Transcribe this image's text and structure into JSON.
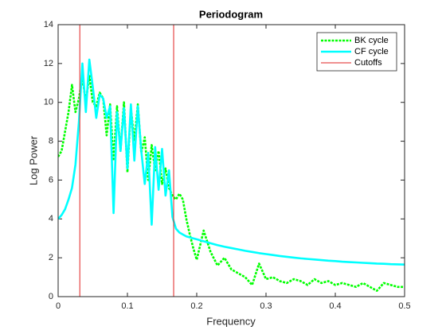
{
  "chart_data": {
    "type": "line",
    "title": "Periodogram",
    "xlabel": "Frequency",
    "ylabel": "Log Power",
    "xlim": [
      0,
      0.5
    ],
    "xticks": [
      0,
      0.1,
      0.2,
      0.3,
      0.4,
      0.5
    ],
    "ylim": [
      0,
      14
    ],
    "yticks": [
      0,
      2,
      4,
      6,
      8,
      10,
      12,
      14
    ],
    "legend": "northeast",
    "x": [
      0,
      0.005,
      0.01,
      0.015,
      0.02,
      0.025,
      0.03,
      0.035,
      0.04,
      0.045,
      0.05,
      0.055,
      0.06,
      0.065,
      0.07,
      0.075,
      0.08,
      0.085,
      0.09,
      0.095,
      0.1,
      0.105,
      0.11,
      0.115,
      0.12,
      0.125,
      0.13,
      0.135,
      0.14,
      0.145,
      0.15,
      0.155,
      0.16,
      0.165,
      0.17,
      0.175,
      0.18,
      0.185,
      0.19,
      0.195,
      0.2,
      0.21,
      0.22,
      0.23,
      0.24,
      0.25,
      0.26,
      0.27,
      0.28,
      0.29,
      0.3,
      0.31,
      0.32,
      0.33,
      0.34,
      0.35,
      0.36,
      0.37,
      0.38,
      0.39,
      0.4,
      0.41,
      0.42,
      0.43,
      0.44,
      0.45,
      0.46,
      0.47,
      0.48,
      0.49,
      0.5
    ],
    "series": [
      {
        "name": "BK cycle",
        "color": "#00ff00",
        "dash": "dotted",
        "values": [
          7.2,
          7.5,
          8.5,
          9.5,
          10.9,
          9.5,
          10.2,
          11.3,
          10.0,
          11.4,
          10.0,
          9.8,
          10.5,
          10.2,
          8.3,
          9.9,
          7.0,
          9.8,
          7.5,
          10.0,
          6.4,
          9.7,
          8.0,
          9.9,
          7.4,
          8.2,
          6.0,
          7.8,
          6.5,
          7.5,
          5.8,
          6.6,
          5.6,
          5.2,
          5.0,
          5.3,
          5.0,
          4.0,
          3.2,
          2.5,
          1.9,
          3.4,
          2.3,
          1.6,
          2.0,
          1.4,
          1.2,
          1.0,
          0.6,
          1.7,
          0.9,
          1.0,
          0.8,
          0.7,
          0.9,
          0.8,
          0.6,
          0.9,
          0.7,
          0.8,
          0.6,
          0.7,
          0.6,
          0.5,
          0.7,
          0.5,
          0.3,
          0.7,
          0.6,
          0.5,
          0.5
        ]
      },
      {
        "name": "CF cycle",
        "color": "#00ffff",
        "dash": "solid",
        "values": [
          4.0,
          4.2,
          4.5,
          5.0,
          5.6,
          6.8,
          9.0,
          12.0,
          9.5,
          12.2,
          10.8,
          9.2,
          10.4,
          10.2,
          9.2,
          9.8,
          4.3,
          9.5,
          7.5,
          9.7,
          6.6,
          9.9,
          7.0,
          9.8,
          7.5,
          5.8,
          7.4,
          3.7,
          7.7,
          5.5,
          7.6,
          5.2,
          6.5,
          4.1,
          3.5,
          3.3,
          3.2,
          3.1,
          3.05,
          3.0,
          2.95,
          2.85,
          2.75,
          2.65,
          2.57,
          2.5,
          2.43,
          2.36,
          2.3,
          2.24,
          2.19,
          2.14,
          2.09,
          2.05,
          2.01,
          1.97,
          1.94,
          1.91,
          1.88,
          1.85,
          1.83,
          1.8,
          1.78,
          1.76,
          1.74,
          1.72,
          1.7,
          1.69,
          1.67,
          1.66,
          1.65
        ]
      }
    ],
    "cutoffs": {
      "name": "Cutoffs",
      "color": "#e02020",
      "values": [
        0.03125,
        0.1667
      ]
    }
  }
}
